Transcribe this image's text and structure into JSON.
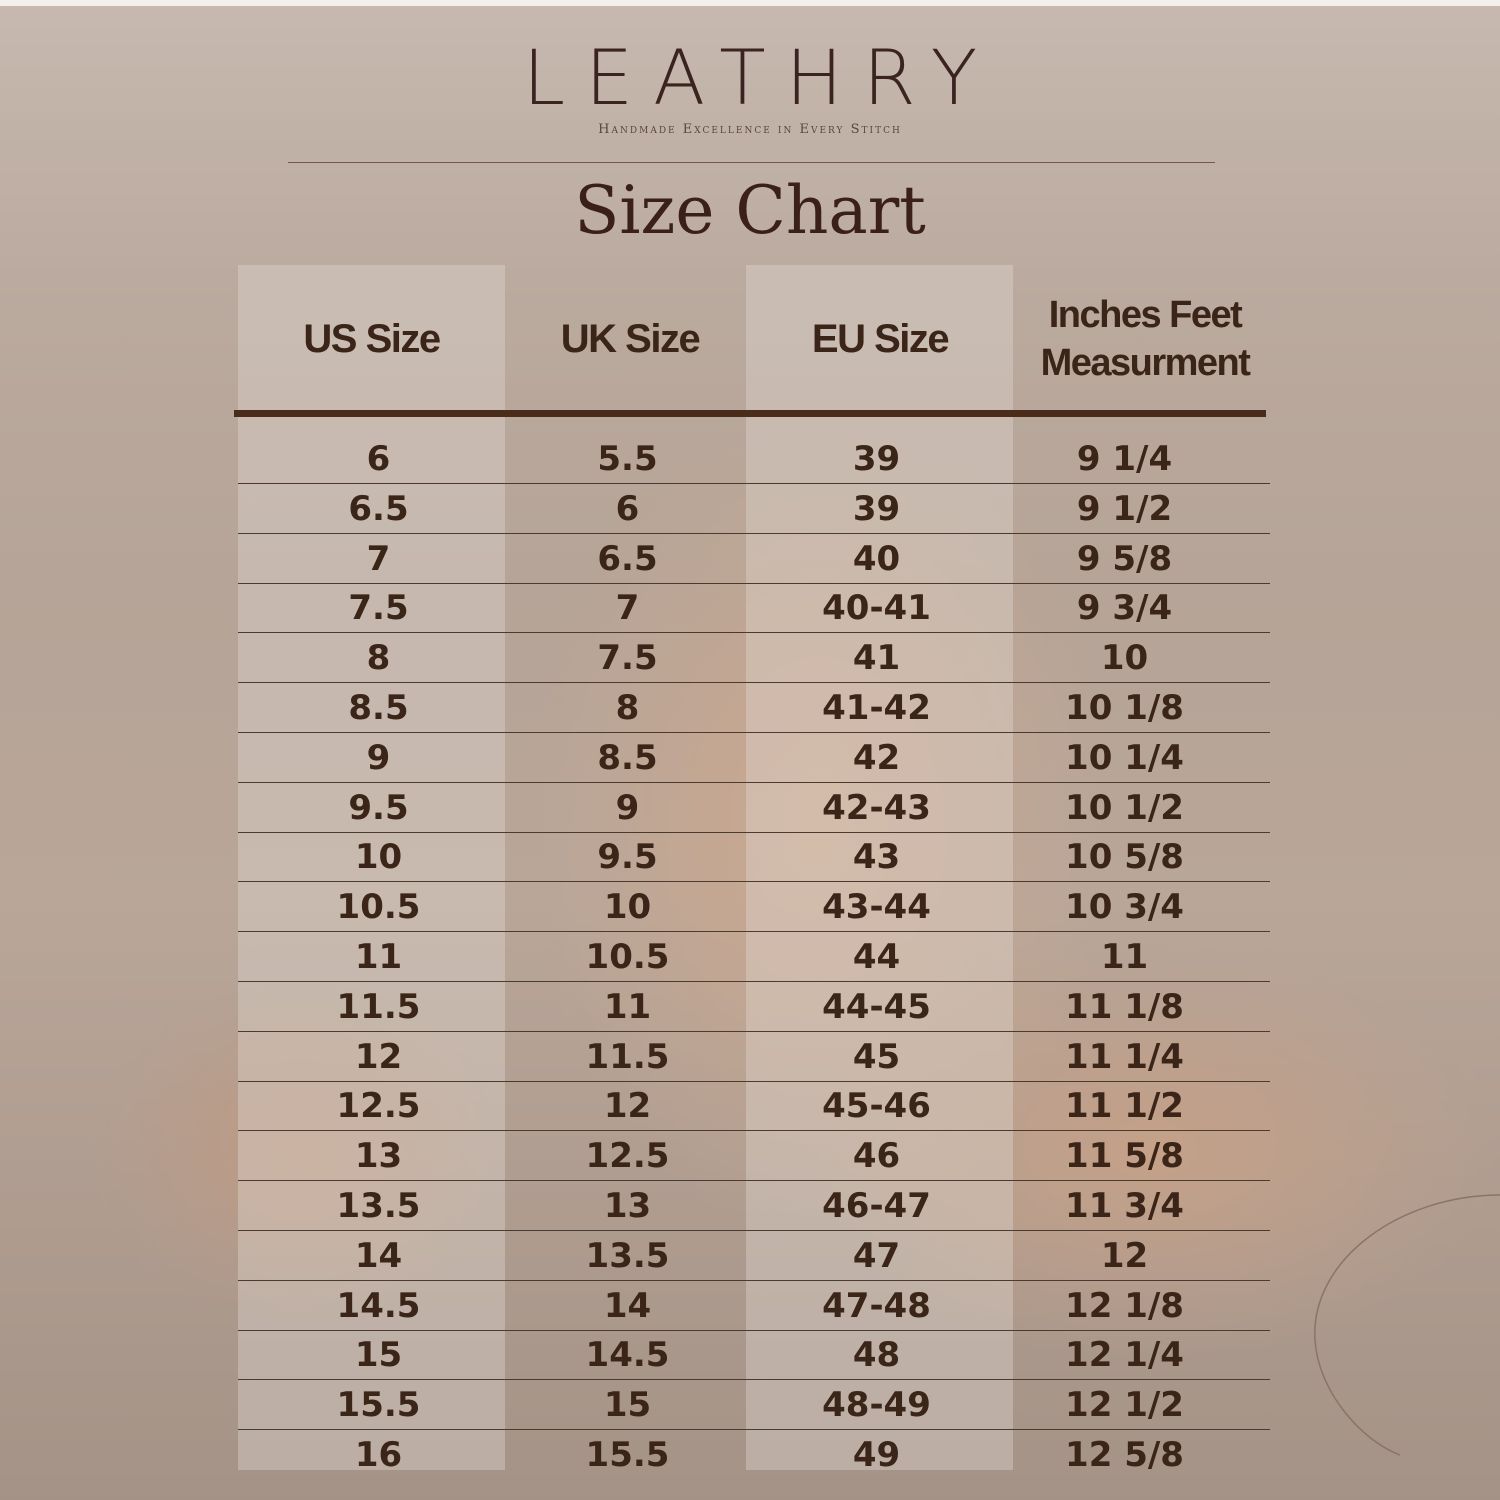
{
  "brand": {
    "logo": "LEATHRY",
    "tagline": "Handmade Excellence in Every Stitch"
  },
  "title": "Size Chart",
  "colors": {
    "text": "#3b2418",
    "rule": "#4a2c1a"
  },
  "chart_data": {
    "type": "table",
    "columns": [
      "US Size",
      "UK Size",
      "EU Size",
      "Inches Feet Measurment"
    ],
    "rows": [
      [
        "6",
        "5.5",
        "39",
        "9 1/4"
      ],
      [
        "6.5",
        "6",
        "39",
        "9 1/2"
      ],
      [
        "7",
        "6.5",
        "40",
        "9 5/8"
      ],
      [
        "7.5",
        "7",
        "40-41",
        "9 3/4"
      ],
      [
        "8",
        "7.5",
        "41",
        "10"
      ],
      [
        "8.5",
        "8",
        "41-42",
        "10 1/8"
      ],
      [
        "9",
        "8.5",
        "42",
        "10 1/4"
      ],
      [
        "9.5",
        "9",
        "42-43",
        "10 1/2"
      ],
      [
        "10",
        "9.5",
        "43",
        "10 5/8"
      ],
      [
        "10.5",
        "10",
        "43-44",
        "10 3/4"
      ],
      [
        "11",
        "10.5",
        "44",
        "11"
      ],
      [
        "11.5",
        "11",
        "44-45",
        "11 1/8"
      ],
      [
        "12",
        "11.5",
        "45",
        "11 1/4"
      ],
      [
        "12.5",
        "12",
        "45-46",
        "11 1/2"
      ],
      [
        "13",
        "12.5",
        "46",
        "11 5/8"
      ],
      [
        "13.5",
        "13",
        "46-47",
        "11 3/4"
      ],
      [
        "14",
        "13.5",
        "47",
        "12"
      ],
      [
        "14.5",
        "14",
        "47-48",
        "12 1/8"
      ],
      [
        "15",
        "14.5",
        "48",
        "12 1/4"
      ],
      [
        "15.5",
        "15",
        "48-49",
        "12 1/2"
      ],
      [
        "16",
        "15.5",
        "49",
        "12 5/8"
      ]
    ]
  }
}
